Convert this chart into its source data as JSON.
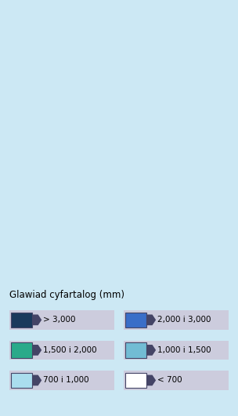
{
  "title": "Glawiad cyfartalog (mm)",
  "background_color": "#cce8f4",
  "legend_items": [
    {
      "label": "> 3,000",
      "color": "#1a3a5c",
      "row": 0,
      "col": 0
    },
    {
      "label": "2,000 i 3,000",
      "color": "#3a6ec8",
      "row": 0,
      "col": 1
    },
    {
      "label": "1,500 i 2,000",
      "color": "#2aaa8a",
      "row": 1,
      "col": 0
    },
    {
      "label": "1,000 i 1,500",
      "color": "#72bcd4",
      "row": 1,
      "col": 1
    },
    {
      "label": "700 i 1,000",
      "color": "#aaddee",
      "row": 2,
      "col": 0
    },
    {
      "label": "< 700",
      "color": "#ffffff",
      "row": 2,
      "col": 1
    }
  ],
  "legend_box_color": "#ccccdd",
  "legend_arrow_color": "#444466",
  "ireland_color": "#aaaaaa",
  "shetland_box_color": "#2a5080"
}
